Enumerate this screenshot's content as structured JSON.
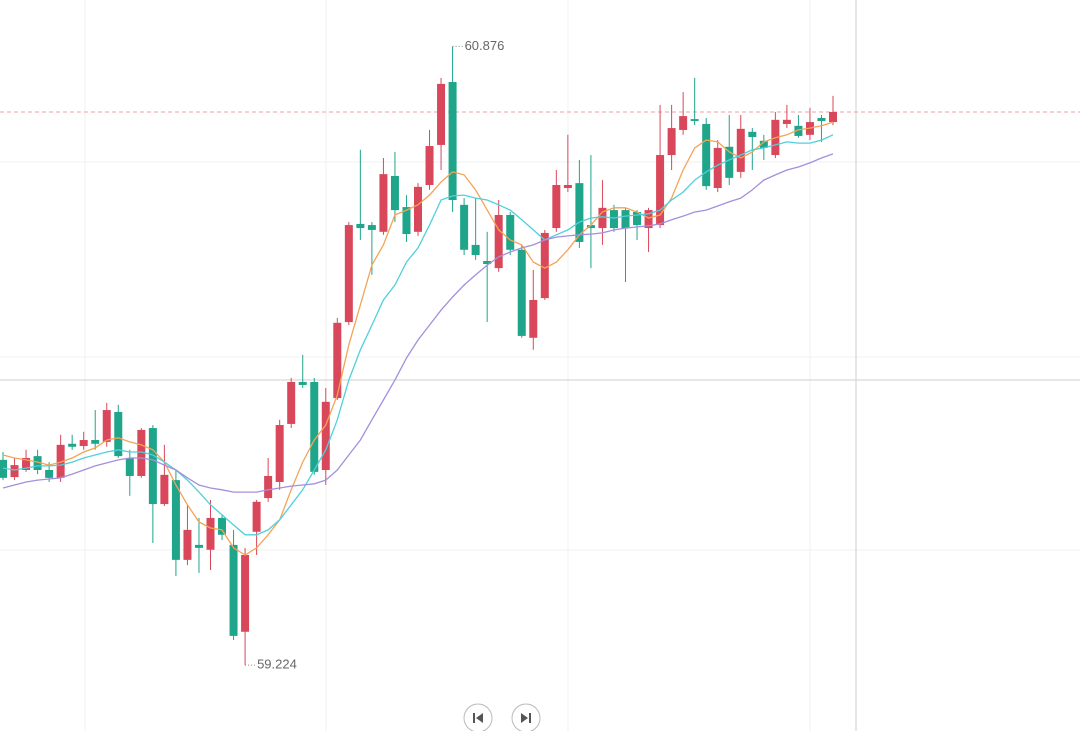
{
  "chart_data": {
    "type": "candlestick",
    "ylim": [
      59.048,
      61
    ],
    "up_color": "#d9475a",
    "down_color": "#1fa58a",
    "last_line_color": "#f0a0aa",
    "open": [
      59.772,
      59.726,
      59.745,
      59.782,
      59.745,
      59.724,
      59.815,
      59.809,
      59.825,
      59.82,
      59.9,
      59.777,
      59.729,
      59.857,
      59.654,
      59.718,
      59.505,
      59.545,
      59.532,
      59.617,
      59.545,
      59.313,
      59.58,
      59.67,
      59.713,
      59.868,
      59.98,
      59.98,
      59.745,
      59.937,
      60.14,
      60.402,
      60.399,
      60.381,
      60.53,
      60.447,
      60.381,
      60.506,
      60.613,
      60.781,
      60.453,
      60.346,
      60.303,
      60.284,
      60.426,
      60.333,
      60.098,
      60.204,
      60.391,
      60.498,
      60.511,
      60.399,
      60.391,
      60.439,
      60.439,
      60.434,
      60.391,
      60.399,
      60.586,
      60.653,
      60.682,
      60.669,
      60.498,
      60.608,
      60.541,
      60.648,
      60.624,
      60.586,
      60.669,
      60.664,
      60.64,
      60.685,
      60.674
    ],
    "high": [
      59.793,
      59.777,
      59.799,
      59.799,
      59.766,
      59.839,
      59.839,
      59.847,
      59.905,
      59.924,
      59.919,
      59.799,
      59.857,
      59.865,
      59.812,
      59.745,
      59.652,
      59.617,
      59.665,
      59.625,
      59.585,
      59.537,
      59.665,
      59.777,
      59.879,
      59.991,
      60.052,
      59.991,
      59.964,
      60.151,
      60.407,
      60.6,
      60.407,
      60.578,
      60.594,
      60.479,
      60.511,
      60.653,
      60.792,
      60.876,
      60.471,
      60.471,
      60.381,
      60.466,
      60.434,
      60.346,
      60.279,
      60.386,
      60.546,
      60.64,
      60.573,
      60.586,
      60.519,
      60.453,
      60.445,
      60.439,
      60.445,
      60.72,
      60.72,
      60.754,
      60.792,
      60.685,
      60.626,
      60.693,
      60.693,
      60.658,
      60.64,
      60.701,
      60.72,
      60.693,
      60.712,
      60.693,
      60.744
    ],
    "low": [
      59.718,
      59.718,
      59.74,
      59.734,
      59.713,
      59.713,
      59.799,
      59.799,
      59.799,
      59.807,
      59.777,
      59.676,
      59.724,
      59.55,
      59.649,
      59.462,
      59.491,
      59.47,
      59.478,
      59.558,
      59.291,
      59.224,
      59.518,
      59.66,
      59.692,
      59.857,
      59.964,
      59.732,
      59.705,
      59.932,
      60.132,
      60.359,
      60.266,
      60.373,
      60.407,
      60.354,
      60.37,
      60.493,
      60.546,
      60.434,
      60.319,
      60.306,
      60.14,
      60.274,
      60.319,
      60.098,
      60.066,
      60.199,
      60.381,
      60.487,
      60.338,
      60.284,
      60.346,
      60.381,
      60.247,
      60.359,
      60.327,
      60.391,
      60.546,
      60.64,
      60.666,
      60.493,
      60.487,
      60.506,
      60.525,
      60.546,
      60.573,
      60.578,
      60.658,
      60.632,
      60.626,
      60.621,
      60.666
    ],
    "close": [
      59.724,
      59.758,
      59.777,
      59.745,
      59.724,
      59.812,
      59.807,
      59.825,
      59.815,
      59.905,
      59.782,
      59.729,
      59.852,
      59.654,
      59.732,
      59.505,
      59.585,
      59.537,
      59.617,
      59.572,
      59.302,
      59.518,
      59.66,
      59.729,
      59.865,
      59.98,
      59.972,
      59.74,
      59.927,
      60.138,
      60.399,
      60.391,
      60.386,
      60.535,
      60.439,
      60.375,
      60.501,
      60.61,
      60.776,
      60.466,
      60.333,
      60.319,
      60.295,
      60.426,
      60.333,
      60.103,
      60.199,
      60.378,
      60.506,
      60.506,
      60.354,
      60.391,
      60.445,
      60.391,
      60.391,
      60.399,
      60.439,
      60.586,
      60.658,
      60.69,
      60.677,
      60.503,
      60.605,
      60.525,
      60.656,
      60.634,
      60.605,
      60.68,
      60.68,
      60.637,
      60.674,
      60.677,
      60.701
    ],
    "series": [
      {
        "color": "#f5a356",
        "values": [
          59.785,
          59.777,
          59.772,
          59.766,
          59.758,
          59.766,
          59.777,
          59.793,
          59.804,
          59.825,
          59.831,
          59.82,
          59.812,
          59.799,
          59.766,
          59.705,
          59.652,
          59.606,
          59.59,
          59.585,
          59.537,
          59.518,
          59.537,
          59.572,
          59.612,
          59.692,
          59.766,
          59.825,
          59.865,
          59.945,
          60.079,
          60.186,
          60.292,
          60.346,
          60.426,
          60.439,
          60.453,
          60.479,
          60.514,
          60.541,
          60.533,
          60.493,
          60.439,
          60.386,
          60.359,
          60.346,
          60.3,
          60.284,
          60.3,
          60.333,
          60.373,
          60.399,
          60.434,
          60.445,
          60.445,
          60.434,
          60.418,
          60.426,
          60.471,
          60.546,
          60.605,
          60.626,
          60.621,
          60.594,
          60.578,
          60.594,
          60.621,
          60.632,
          60.64,
          60.653,
          60.658,
          60.664,
          60.674
        ]
      },
      {
        "color": "#4fd0dc",
        "values": [
          59.75,
          59.745,
          59.75,
          59.756,
          59.756,
          59.758,
          59.766,
          59.777,
          59.785,
          59.793,
          59.799,
          59.793,
          59.793,
          59.785,
          59.766,
          59.745,
          59.718,
          59.686,
          59.652,
          59.625,
          59.598,
          59.572,
          59.572,
          59.585,
          59.612,
          59.652,
          59.692,
          59.745,
          59.799,
          59.879,
          59.985,
          60.066,
          60.132,
          60.199,
          60.239,
          60.3,
          60.338,
          60.399,
          60.466,
          60.477,
          60.479,
          60.471,
          60.466,
          60.453,
          60.439,
          60.413,
          60.386,
          60.359,
          60.373,
          60.386,
          60.407,
          60.418,
          60.421,
          60.418,
          60.423,
          60.426,
          60.429,
          60.439,
          60.466,
          60.487,
          60.519,
          60.541,
          60.559,
          60.573,
          60.586,
          60.6,
          60.605,
          60.613,
          60.621,
          60.618,
          60.618,
          60.626,
          60.64
        ]
      },
      {
        "color": "#a58fdc",
        "values": [
          59.697,
          59.705,
          59.713,
          59.718,
          59.721,
          59.724,
          59.734,
          59.745,
          59.756,
          59.764,
          59.772,
          59.777,
          59.777,
          59.772,
          59.758,
          59.745,
          59.724,
          59.705,
          59.697,
          59.692,
          59.686,
          59.686,
          59.686,
          59.692,
          59.697,
          59.702,
          59.705,
          59.708,
          59.718,
          59.745,
          59.785,
          59.825,
          59.879,
          59.932,
          59.985,
          60.044,
          60.092,
          60.132,
          60.172,
          60.207,
          60.239,
          60.266,
          60.292,
          60.314,
          60.327,
          60.338,
          60.346,
          60.359,
          60.367,
          60.37,
          60.373,
          60.375,
          60.378,
          60.386,
          60.391,
          60.394,
          60.397,
          60.402,
          60.413,
          60.423,
          60.434,
          60.439,
          60.45,
          60.461,
          60.471,
          60.493,
          60.519,
          60.533,
          60.546,
          60.554,
          60.565,
          60.578,
          60.589
        ]
      }
    ]
  }
}
